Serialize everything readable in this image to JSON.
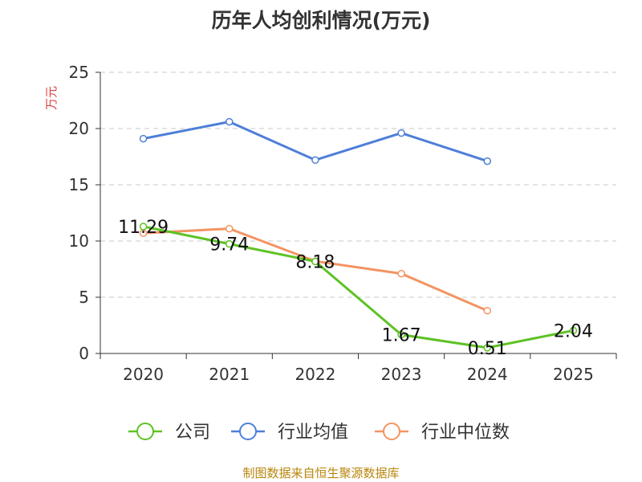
{
  "title": "历年人均创利情况(万元)",
  "source": "制图数据来自恒生聚源数据库",
  "chart_data": {
    "type": "line",
    "title": "历年人均创利情况(万元)",
    "ylabel": "万元",
    "xlabel": "",
    "ylim": [
      0,
      25
    ],
    "yticks": [
      0,
      5,
      10,
      15,
      20,
      25
    ],
    "categories": [
      "2020",
      "2021",
      "2022",
      "2023",
      "2024",
      "2025"
    ],
    "legend_position": "bottom",
    "series": [
      {
        "name": "公司",
        "color": "#5ec224",
        "values": [
          11.29,
          9.74,
          8.18,
          1.67,
          0.51,
          2.04
        ],
        "labels": [
          "11.29",
          "9.74",
          "8.18",
          "1.67",
          "0.51",
          "2.04"
        ]
      },
      {
        "name": "行业均值",
        "color": "#4e7fd8",
        "values": [
          19.1,
          20.6,
          17.2,
          19.6,
          17.1,
          null
        ]
      },
      {
        "name": "行业中位数",
        "color": "#f39461",
        "values": [
          10.7,
          11.1,
          8.2,
          7.1,
          3.8,
          null
        ]
      }
    ]
  }
}
